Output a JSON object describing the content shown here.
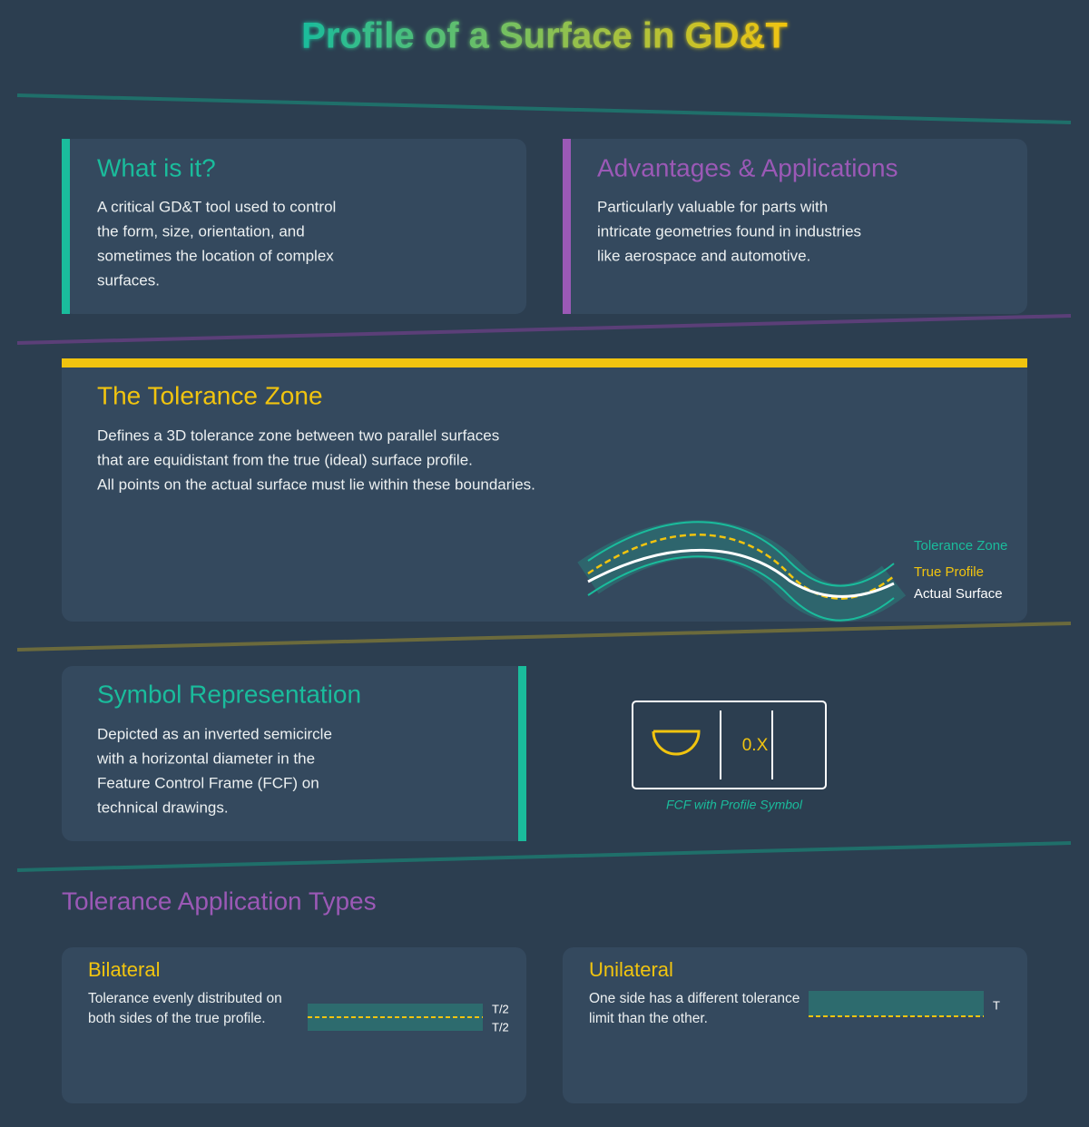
{
  "title": "Profile of a Surface in GD&T",
  "what_is_it": {
    "heading": "What is it?",
    "lines": [
      "A critical GD&T tool used to control",
      "the form, size, orientation, and",
      "sometimes the location of complex",
      "surfaces."
    ]
  },
  "advantages": {
    "heading": "Advantages & Applications",
    "lines": [
      "Particularly valuable for parts with",
      "intricate geometries found in industries",
      "like aerospace and automotive."
    ]
  },
  "tolerance_zone": {
    "heading": "The Tolerance Zone",
    "lines": [
      "Defines a 3D tolerance zone between two parallel surfaces",
      "that are equidistant from the true (ideal) surface profile.",
      "All points on the actual surface must lie within these boundaries."
    ],
    "legend": [
      "Tolerance Zone",
      "True Profile",
      "Actual Surface"
    ]
  },
  "symbol": {
    "heading": "Symbol Representation",
    "lines": [
      "Depicted as an inverted semicircle",
      "with a horizontal diameter in the",
      "Feature Control Frame (FCF) on",
      "technical drawings."
    ],
    "fcf_value": "0.X",
    "caption": "FCF with Profile Symbol"
  },
  "application_types": {
    "heading": "Tolerance Application Types",
    "bilateral": {
      "heading": "Bilateral",
      "lines": [
        "Tolerance evenly distributed on",
        "both sides of the true profile."
      ],
      "labels": [
        "T/2",
        "T/2"
      ]
    },
    "unilateral": {
      "heading": "Unilateral",
      "lines": [
        "One side has a different tolerance",
        "limit than the other."
      ],
      "label": "T"
    }
  }
}
